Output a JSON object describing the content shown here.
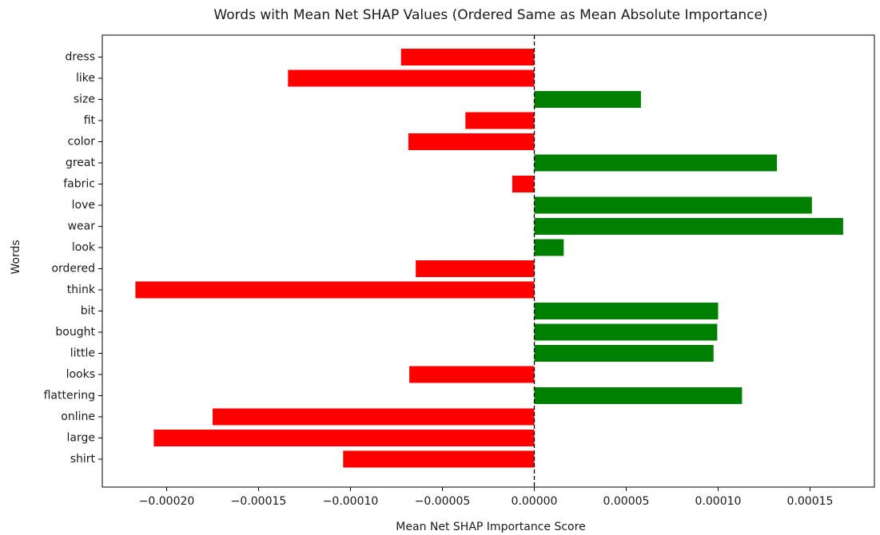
{
  "chart_data": {
    "type": "bar",
    "orientation": "horizontal",
    "title": "Words with Mean Net SHAP Values (Ordered Same as Mean Absolute Importance)",
    "xlabel": "Mean Net SHAP Importance Score",
    "ylabel": "Words",
    "xlim": [
      -0.000235,
      0.000185
    ],
    "x_ticks": [
      -0.0002,
      -0.00015,
      -0.0001,
      -5e-05,
      0.0,
      5e-05,
      0.0001,
      0.00015
    ],
    "x_tick_labels": [
      "−0.00020",
      "−0.00015",
      "−0.00010",
      "−0.00005",
      "0.00000",
      "0.00005",
      "0.00010",
      "0.00015"
    ],
    "categories": [
      "dress",
      "like",
      "size",
      "fit",
      "color",
      "great",
      "fabric",
      "love",
      "wear",
      "look",
      "ordered",
      "think",
      "bit",
      "bought",
      "little",
      "looks",
      "flattering",
      "online",
      "large",
      "shirt"
    ],
    "values": [
      -7.25e-05,
      -0.000134,
      5.8e-05,
      -3.75e-05,
      -6.85e-05,
      0.000132,
      -1.2e-05,
      0.000151,
      0.000168,
      1.6e-05,
      -6.45e-05,
      -0.000217,
      0.0001,
      9.95e-05,
      9.75e-05,
      -6.8e-05,
      0.000113,
      -0.000175,
      -0.000207,
      -0.000104
    ],
    "positive_color": "#008000",
    "negative_color": "#ff0000",
    "zero_line": "dashed",
    "grid": false,
    "legend": "none"
  }
}
